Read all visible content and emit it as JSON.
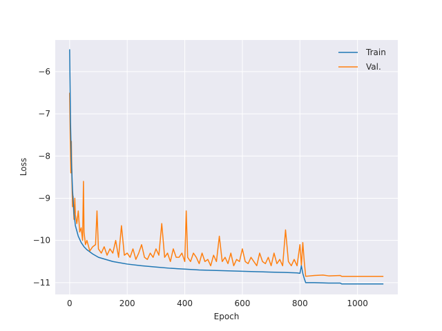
{
  "chart_data": {
    "type": "line",
    "title": "",
    "xlabel": "Epoch",
    "ylabel": "Loss",
    "xlim": [
      -50,
      1140
    ],
    "ylim": [
      -11.28,
      -5.25
    ],
    "xticks": [
      0,
      200,
      400,
      600,
      800,
      1000
    ],
    "yticks": [
      -11,
      -10,
      -9,
      -8,
      -7,
      -6
    ],
    "ytick_labels": [
      "−11",
      "−10",
      "−9",
      "−8",
      "−7",
      "−6"
    ],
    "grid": true,
    "legend_position": "upper-right",
    "series": [
      {
        "name": "Train",
        "color": "#1f77b4",
        "x": [
          0,
          3,
          6,
          10,
          15,
          20,
          30,
          40,
          50,
          60,
          80,
          100,
          150,
          200,
          250,
          300,
          350,
          400,
          450,
          500,
          550,
          600,
          650,
          700,
          750,
          790,
          800,
          805,
          810,
          815,
          820,
          850,
          900,
          940,
          945,
          1000,
          1050,
          1090
        ],
        "y": [
          -5.47,
          -7.2,
          -8.1,
          -8.8,
          -9.35,
          -9.65,
          -9.9,
          -10.05,
          -10.15,
          -10.22,
          -10.32,
          -10.4,
          -10.5,
          -10.56,
          -10.6,
          -10.63,
          -10.66,
          -10.68,
          -10.7,
          -10.71,
          -10.72,
          -10.73,
          -10.74,
          -10.75,
          -10.76,
          -10.77,
          -10.78,
          -10.6,
          -10.78,
          -10.9,
          -11.0,
          -11.0,
          -11.01,
          -11.01,
          -11.03,
          -11.03,
          -11.03,
          -11.03
        ]
      },
      {
        "name": "Val.",
        "color": "#ff7f0e",
        "x": [
          0,
          2,
          4,
          6,
          8,
          10,
          12,
          15,
          18,
          20,
          25,
          30,
          35,
          40,
          45,
          48,
          50,
          55,
          60,
          70,
          80,
          90,
          95,
          100,
          110,
          120,
          130,
          140,
          150,
          160,
          170,
          180,
          190,
          200,
          210,
          220,
          230,
          240,
          250,
          260,
          270,
          280,
          290,
          300,
          310,
          320,
          330,
          340,
          350,
          360,
          370,
          380,
          390,
          400,
          405,
          410,
          420,
          430,
          440,
          450,
          460,
          470,
          480,
          490,
          500,
          510,
          520,
          530,
          540,
          550,
          560,
          570,
          580,
          590,
          600,
          610,
          620,
          630,
          640,
          650,
          660,
          670,
          680,
          690,
          700,
          710,
          720,
          730,
          740,
          750,
          760,
          770,
          780,
          790,
          800,
          805,
          810,
          815,
          820,
          850,
          880,
          900,
          940,
          945,
          1000,
          1050,
          1090
        ],
        "y": [
          -6.5,
          -7.6,
          -8.4,
          -7.65,
          -8.6,
          -9.2,
          -8.95,
          -9.5,
          -9.0,
          -9.4,
          -9.6,
          -9.3,
          -9.8,
          -9.7,
          -10.0,
          -8.6,
          -9.8,
          -10.1,
          -10.0,
          -10.25,
          -10.15,
          -10.1,
          -9.3,
          -10.2,
          -10.3,
          -10.15,
          -10.35,
          -10.2,
          -10.3,
          -10.0,
          -10.4,
          -9.65,
          -10.35,
          -10.3,
          -10.4,
          -10.2,
          -10.45,
          -10.3,
          -10.1,
          -10.4,
          -10.45,
          -10.3,
          -10.4,
          -10.2,
          -10.35,
          -9.6,
          -10.4,
          -10.3,
          -10.5,
          -10.2,
          -10.4,
          -10.4,
          -10.3,
          -10.5,
          -9.3,
          -10.4,
          -10.5,
          -10.3,
          -10.4,
          -10.55,
          -10.3,
          -10.5,
          -10.45,
          -10.6,
          -10.35,
          -10.5,
          -9.9,
          -10.5,
          -10.4,
          -10.55,
          -10.3,
          -10.6,
          -10.45,
          -10.5,
          -10.2,
          -10.5,
          -10.55,
          -10.4,
          -10.5,
          -10.6,
          -10.3,
          -10.5,
          -10.55,
          -10.4,
          -10.6,
          -10.3,
          -10.55,
          -10.45,
          -10.6,
          -9.75,
          -10.5,
          -10.6,
          -10.45,
          -10.6,
          -10.1,
          -10.6,
          -10.05,
          -10.5,
          -10.85,
          -10.83,
          -10.82,
          -10.84,
          -10.83,
          -10.85,
          -10.85,
          -10.85,
          -10.85
        ]
      }
    ]
  }
}
